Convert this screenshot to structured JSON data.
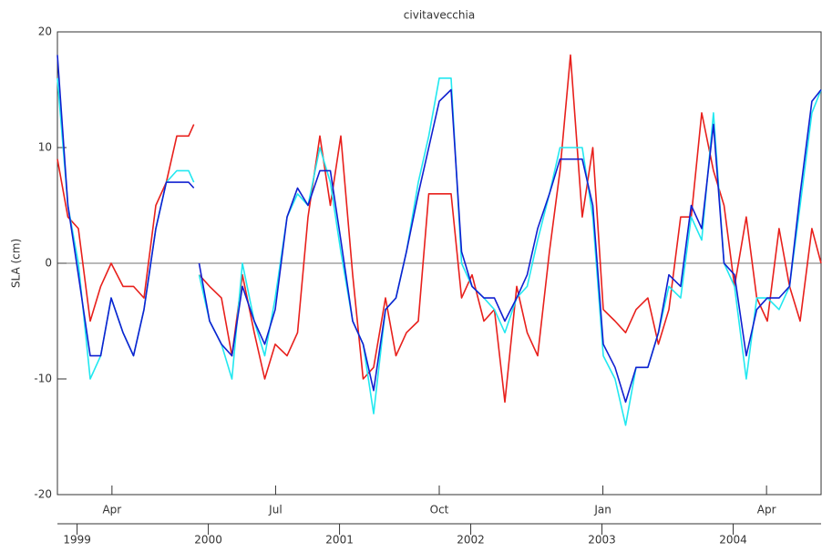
{
  "chart_data": {
    "type": "line",
    "title": "civitavecchia",
    "ylabel": "SLA (cm)",
    "x": [
      1998.85,
      1998.93,
      1999.01,
      1999.1,
      1999.18,
      1999.26,
      1999.35,
      1999.43,
      1999.51,
      1999.6,
      1999.68,
      1999.76,
      1999.85,
      1999.89,
      1999.91,
      1999.93,
      2000.01,
      2000.1,
      2000.18,
      2000.26,
      2000.35,
      2000.43,
      2000.51,
      2000.6,
      2000.68,
      2000.76,
      2000.85,
      2000.93,
      2001.01,
      2001.1,
      2001.18,
      2001.26,
      2001.35,
      2001.43,
      2001.51,
      2001.6,
      2001.68,
      2001.76,
      2001.85,
      2001.93,
      2002.01,
      2002.1,
      2002.18,
      2002.26,
      2002.35,
      2002.43,
      2002.51,
      2002.6,
      2002.68,
      2002.76,
      2002.85,
      2002.93,
      2003.01,
      2003.1,
      2003.18,
      2003.26,
      2003.35,
      2003.43,
      2003.51,
      2003.6,
      2003.68,
      2003.76,
      2003.85,
      2003.93,
      2004.01,
      2004.1,
      2004.18,
      2004.26,
      2004.35,
      2004.43,
      2004.51,
      2004.6,
      2004.67
    ],
    "series": [
      {
        "name": "red",
        "color": "#e8201c",
        "values": [
          9,
          4,
          3,
          -5,
          -2,
          0,
          -2,
          -2,
          -3,
          5,
          7,
          11,
          11,
          12,
          null,
          -1,
          -2,
          -3,
          -8,
          -1,
          -6,
          -10,
          -7,
          -8,
          -6,
          4,
          11,
          5,
          11,
          -1,
          -10,
          -9,
          -3,
          -8,
          -6,
          -5,
          6,
          6,
          6,
          -3,
          -1,
          -5,
          -4,
          -12,
          -2,
          -6,
          -8,
          1,
          8,
          18,
          4,
          10,
          -4,
          -5,
          -6,
          -4,
          -3,
          -7,
          -4,
          4,
          4,
          13,
          8,
          5,
          -2,
          4,
          -3,
          -5,
          3,
          -2,
          -5,
          3,
          0
        ]
      },
      {
        "name": "cyan",
        "color": "#22e8f0",
        "values": [
          16,
          5,
          0,
          -10,
          -8,
          -3,
          -6,
          -8,
          -4,
          3,
          7,
          8,
          8,
          7,
          null,
          -1,
          -5,
          -7,
          -10,
          0,
          -5,
          -8,
          -3,
          4,
          6,
          5,
          10,
          7,
          1,
          -5,
          -7,
          -13,
          -4,
          -3,
          1,
          7,
          11,
          16,
          16,
          0,
          -2,
          -3,
          -4,
          -6,
          -3,
          -2,
          2,
          6,
          10,
          10,
          10,
          4,
          -8,
          -10,
          -14,
          -9,
          -9,
          -6,
          -2,
          -3,
          4,
          2,
          13,
          0,
          -2,
          -10,
          -3,
          -3,
          -4,
          -2,
          5,
          13,
          15
        ]
      },
      {
        "name": "blue",
        "color": "#1020d0",
        "values": [
          18,
          5,
          -1,
          -8,
          -8,
          -3,
          -6,
          -8,
          -4,
          3,
          7,
          7,
          7,
          6.5,
          null,
          0,
          -5,
          -7,
          -8,
          -2,
          -5,
          -7,
          -4,
          4,
          6.5,
          5,
          8,
          8,
          2,
          -5,
          -7,
          -11,
          -4,
          -3,
          1,
          6,
          10,
          14,
          15,
          1,
          -2,
          -3,
          -3,
          -5,
          -3,
          -1,
          3,
          6,
          9,
          9,
          9,
          5,
          -7,
          -9,
          -12,
          -9,
          -9,
          -6,
          -1,
          -2,
          5,
          3,
          12,
          0,
          -1,
          -8,
          -4,
          -3,
          -3,
          -2,
          6,
          14,
          15
        ]
      }
    ],
    "xlim": [
      1998.85,
      2004.67
    ],
    "xticks": [
      1999,
      2000,
      2001,
      2002,
      2003,
      2004
    ],
    "x2lim": [
      3.0,
      17.0
    ],
    "x2ticks": [
      {
        "value": 4,
        "label": "Apr"
      },
      {
        "value": 7,
        "label": "Jul"
      },
      {
        "value": 10,
        "label": "Oct"
      },
      {
        "value": 13,
        "label": "Jan"
      },
      {
        "value": 16,
        "label": "Apr"
      }
    ],
    "ylim": [
      -20,
      20
    ],
    "yticks": [
      -20,
      -10,
      0,
      10,
      20
    ]
  }
}
